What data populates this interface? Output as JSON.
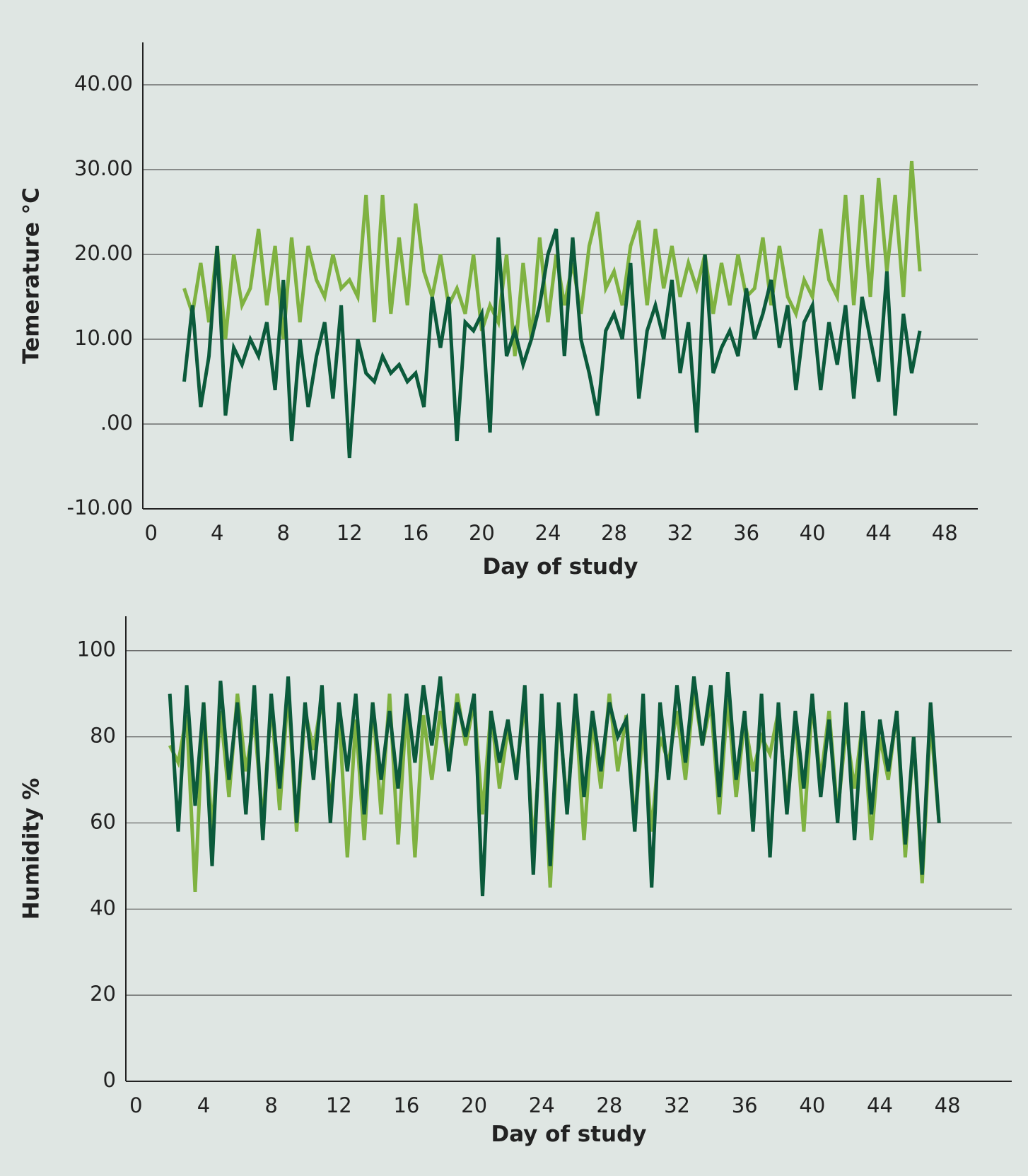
{
  "chart_data": [
    {
      "type": "line",
      "xlabel": "Day of study",
      "ylabel": "Temerature °C",
      "xlim": [
        -0.5,
        50
      ],
      "ylim": [
        -10,
        45
      ],
      "xticks": [
        0,
        4,
        8,
        12,
        16,
        20,
        24,
        28,
        32,
        36,
        40,
        44,
        48
      ],
      "yticks": [
        {
          "value": -10,
          "label": "-10.00"
        },
        {
          "value": 0,
          "label": ".00"
        },
        {
          "value": 10,
          "label": "10.00"
        },
        {
          "value": 20,
          "label": "20.00"
        },
        {
          "value": 30,
          "label": "30.00"
        },
        {
          "value": 40,
          "label": "40.00"
        }
      ],
      "grid": true,
      "x": [
        2,
        2.5,
        3,
        3.5,
        4,
        4.5,
        5,
        5.5,
        6,
        6.5,
        7,
        7.5,
        8,
        8.5,
        9,
        9.5,
        10,
        10.5,
        11,
        11.5,
        12,
        12.5,
        13,
        13.5,
        14,
        14.5,
        15,
        15.5,
        16,
        16.5,
        17,
        17.5,
        18,
        18.5,
        19,
        19.5,
        20,
        20.5,
        21,
        21.5,
        22,
        22.5,
        23,
        23.5,
        24,
        24.5,
        25,
        25.5,
        26,
        26.5,
        27,
        27.5,
        28,
        28.5,
        29,
        29.5,
        30,
        30.5,
        31,
        31.5,
        32,
        32.5,
        33,
        33.5,
        34,
        34.5,
        35,
        35.5,
        36,
        36.5,
        37,
        37.5,
        38,
        38.5,
        39,
        39.5,
        40,
        40.5,
        41,
        41.5,
        42,
        42.5,
        43,
        43.5,
        44,
        44.5,
        45,
        45.5,
        46,
        46.5
      ],
      "series": [
        {
          "color": "#7fb241",
          "values": [
            16,
            13,
            19,
            12,
            21,
            10,
            20,
            14,
            16,
            23,
            14,
            21,
            10,
            22,
            12,
            21,
            17,
            15,
            20,
            16,
            17,
            15,
            27,
            12,
            27,
            13,
            22,
            14,
            26,
            18,
            15,
            20,
            14,
            16,
            13,
            20,
            11,
            14,
            12,
            20,
            8,
            19,
            10,
            22,
            12,
            20,
            14,
            19,
            13,
            21,
            25,
            16,
            18,
            14,
            21,
            24,
            14,
            23,
            16,
            21,
            15,
            19,
            16,
            20,
            13,
            19,
            14,
            20,
            15,
            16,
            22,
            14,
            21,
            15,
            13,
            17,
            15,
            23,
            17,
            15,
            27,
            14,
            27,
            15,
            29,
            18,
            27,
            15,
            31,
            18
          ]
        },
        {
          "color": "#0b5a3b",
          "values": [
            5,
            14,
            2,
            8,
            21,
            1,
            9,
            7,
            10,
            8,
            12,
            4,
            17,
            -2,
            10,
            2,
            8,
            12,
            3,
            14,
            -4,
            10,
            6,
            5,
            8,
            6,
            7,
            5,
            6,
            2,
            15,
            9,
            15,
            -2,
            12,
            11,
            13,
            -1,
            22,
            8,
            11,
            7,
            10,
            14,
            20,
            23,
            8,
            22,
            10,
            6,
            1,
            11,
            13,
            10,
            19,
            3,
            11,
            14,
            10,
            17,
            6,
            12,
            -1,
            20,
            6,
            9,
            11,
            8,
            16,
            10,
            13,
            17,
            9,
            14,
            4,
            12,
            14,
            4,
            12,
            7,
            14,
            3,
            15,
            10,
            5,
            18,
            1,
            13,
            6,
            11
          ]
        }
      ]
    },
    {
      "type": "line",
      "xlabel": "Day of study",
      "ylabel": "Humidity %",
      "xlim": [
        -0.6,
        51.8
      ],
      "ylim": [
        0,
        108
      ],
      "xticks": [
        0,
        4,
        8,
        12,
        16,
        20,
        24,
        28,
        32,
        36,
        40,
        44,
        48
      ],
      "yticks": [
        0,
        20,
        40,
        60,
        80,
        100
      ],
      "grid": true,
      "x": [
        2,
        2.5,
        3,
        3.5,
        4,
        4.5,
        5,
        5.5,
        6,
        6.5,
        7,
        7.5,
        8,
        8.5,
        9,
        9.5,
        10,
        10.5,
        11,
        11.5,
        12,
        12.5,
        13,
        13.5,
        14,
        14.5,
        15,
        15.5,
        16,
        16.5,
        17,
        17.5,
        18,
        18.5,
        19,
        19.5,
        20,
        20.5,
        21,
        21.5,
        22,
        22.5,
        23,
        23.5,
        24,
        24.5,
        25,
        25.5,
        26,
        26.5,
        27,
        27.5,
        28,
        28.5,
        29,
        29.5,
        30,
        30.5,
        31,
        31.5,
        32,
        32.5,
        33,
        33.5,
        34,
        34.5,
        35,
        35.5,
        36,
        36.5,
        37,
        37.5,
        38,
        38.5,
        39,
        39.5,
        40,
        40.5,
        41,
        41.5,
        42,
        42.5,
        43,
        43.5,
        44,
        44.5,
        45,
        45.5,
        46,
        46.5,
        47,
        47.5
      ],
      "series": [
        {
          "color": "#7fb241",
          "values": [
            78,
            74,
            85,
            44,
            88,
            58,
            86,
            66,
            90,
            72,
            84,
            60,
            88,
            63,
            91,
            58,
            86,
            77,
            89,
            64,
            86,
            52,
            84,
            56,
            88,
            62,
            90,
            55,
            87,
            52,
            85,
            70,
            86,
            74,
            90,
            78,
            88,
            62,
            86,
            68,
            82,
            72,
            88,
            54,
            84,
            45,
            86,
            64,
            87,
            56,
            84,
            68,
            90,
            72,
            85,
            60,
            82,
            58,
            80,
            74,
            86,
            70,
            91,
            78,
            88,
            62,
            89,
            66,
            84,
            72,
            80,
            76,
            86,
            64,
            85,
            58,
            88,
            70,
            86,
            62,
            82,
            68,
            84,
            56,
            80,
            70,
            86,
            52,
            80,
            46,
            84,
            60
          ]
        },
        {
          "color": "#0b5a3b",
          "values": [
            90,
            58,
            92,
            64,
            88,
            50,
            93,
            70,
            88,
            62,
            92,
            56,
            90,
            68,
            94,
            60,
            88,
            70,
            92,
            60,
            88,
            72,
            90,
            62,
            88,
            70,
            86,
            68,
            90,
            74,
            92,
            78,
            94,
            72,
            88,
            80,
            90,
            43,
            86,
            74,
            84,
            70,
            92,
            48,
            90,
            50,
            88,
            62,
            90,
            66,
            86,
            72,
            88,
            80,
            84,
            58,
            90,
            45,
            88,
            70,
            92,
            74,
            94,
            78,
            92,
            66,
            95,
            70,
            86,
            58,
            90,
            52,
            88,
            62,
            86,
            68,
            90,
            66,
            84,
            60,
            88,
            56,
            86,
            62,
            84,
            72,
            86,
            55,
            80,
            48,
            88,
            60
          ]
        }
      ]
    }
  ]
}
